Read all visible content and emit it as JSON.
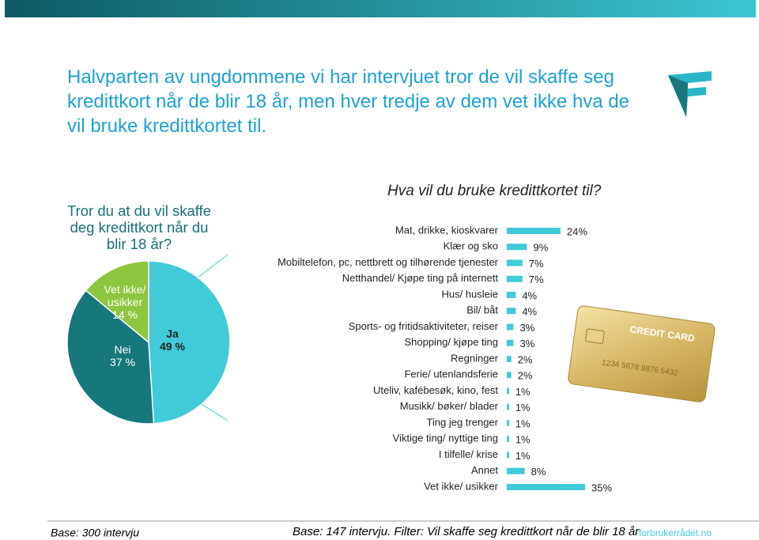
{
  "title": "Halvparten av ungdommene vi har intervjuet tror de vil skaffe seg kredittkort når de blir 18 år, men hver tredje av dem vet ikke hva de vil bruke kredittkortet til.",
  "chart_data": [
    {
      "type": "pie",
      "title": "Tror du at du vil skaffe deg kredittkort når du blir 18 år?",
      "categories": [
        "Ja",
        "Nei",
        "Vet ikke/ usikker"
      ],
      "values": [
        49,
        37,
        14
      ],
      "value_labels": [
        "49 %",
        "37 %",
        "14 %"
      ],
      "colors": [
        "#41cbd9",
        "#17787c",
        "#8dc63f"
      ]
    },
    {
      "type": "barh",
      "title": "Hva vil du bruke kredittkortet til?",
      "categories": [
        "Mat, drikke, kioskvarer",
        "Klær og sko",
        "Mobiltelefon, pc, nettbrett og tilhørende tjenester",
        "Netthandel/ Kjøpe ting på internett",
        "Hus/ husleie",
        "Bil/ båt",
        "Sports- og fritidsaktiviteter, reiser",
        "Shopping/ kjøpe ting",
        "Regninger",
        "Ferie/ utenlandsferie",
        "Uteliv, kafébesøk, kino, fest",
        "Musikk/ bøker/ blader",
        "Ting jeg trenger",
        "Viktige ting/ nyttige ting",
        "I tilfelle/ krise",
        "Annet",
        "Vet ikke/ usikker"
      ],
      "values": [
        24,
        9,
        7,
        7,
        4,
        4,
        3,
        3,
        2,
        2,
        1,
        1,
        1,
        1,
        1,
        8,
        35
      ],
      "value_labels": [
        "24%",
        "9%",
        "7%",
        "7%",
        "4%",
        "4%",
        "3%",
        "3%",
        "2%",
        "2%",
        "1%",
        "1%",
        "1%",
        "1%",
        "1%",
        "8%",
        "35%"
      ],
      "color": "#41cbd9"
    }
  ],
  "card": {
    "label": "CREDIT CARD",
    "number": "1234 5678 9876 5432"
  },
  "footer": {
    "base_left": "Base: 300 intervju",
    "base_right": "Base: 147 intervju. Filter: Vil skaffe seg kredittkort når de blir 18 år",
    "brand": "forbrukerrådet.no"
  }
}
